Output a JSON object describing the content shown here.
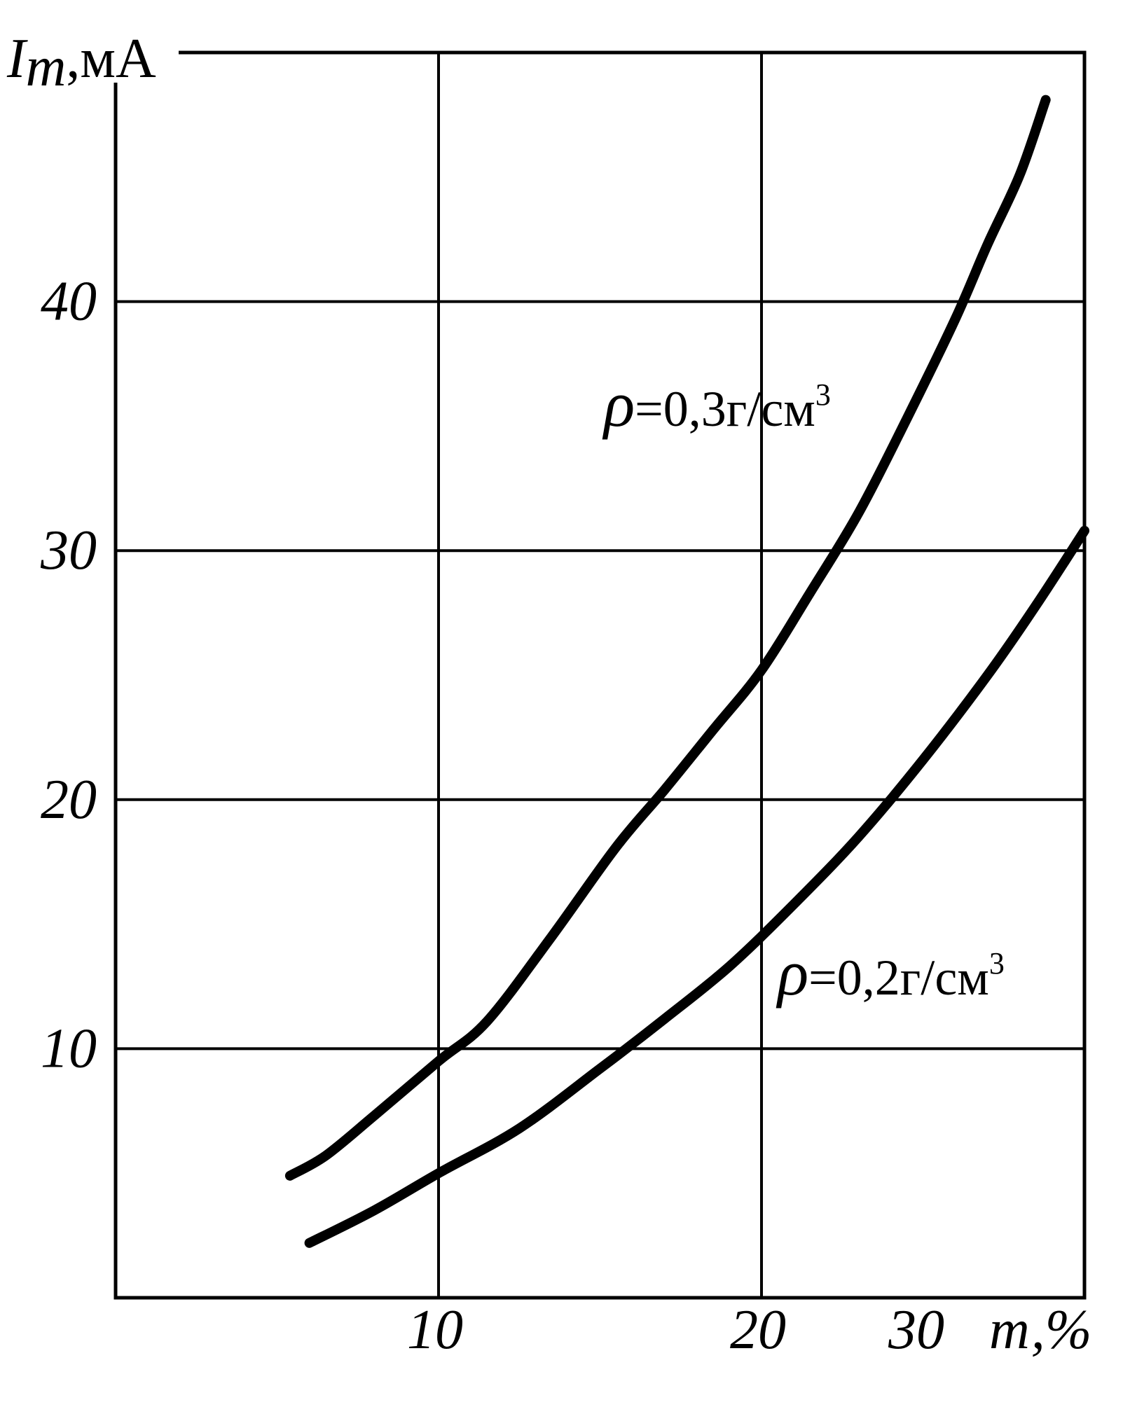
{
  "chart_data": {
    "type": "line",
    "title": "",
    "ylabel": {
      "symbol": "I",
      "subscript": "m",
      "unit": ",мА"
    },
    "xlabel": "т,%",
    "xlim": [
      0,
      30
    ],
    "ylim": [
      0,
      50
    ],
    "x_ticks": [
      {
        "value": 10,
        "label": "10"
      },
      {
        "value": 20,
        "label": "20"
      },
      {
        "value": 30,
        "label": "30"
      }
    ],
    "y_ticks": [
      {
        "value": 10,
        "label": "10"
      },
      {
        "value": 20,
        "label": "20"
      },
      {
        "value": 30,
        "label": "30"
      },
      {
        "value": 40,
        "label": "40"
      }
    ],
    "grid": true,
    "series": [
      {
        "name": "ρ=0,3г/см³",
        "label_parts": {
          "rho": "ρ",
          "eq": "=0,3г/см",
          "sup": "3"
        },
        "x": [
          5.4,
          6.5,
          8.0,
          10.0,
          11.5,
          13.5,
          15.5,
          17.0,
          18.5,
          20.0,
          21.5,
          23.0,
          24.5,
          26.0,
          27.0,
          28.0,
          28.8
        ],
        "y": [
          4.9,
          5.7,
          7.3,
          9.5,
          11.1,
          14.5,
          18.1,
          20.4,
          22.8,
          25.2,
          28.3,
          31.5,
          35.3,
          39.3,
          42.3,
          45.1,
          48.1
        ]
      },
      {
        "name": "ρ=0,2г/см³",
        "label_parts": {
          "rho": "ρ",
          "eq": "=0,2г/см",
          "sup": "3"
        },
        "x": [
          6.0,
          8.0,
          10.0,
          12.5,
          15.0,
          17.0,
          19.0,
          21.0,
          23.0,
          25.0,
          27.0,
          28.5,
          30.0
        ],
        "y": [
          2.2,
          3.5,
          5.0,
          6.8,
          9.2,
          11.2,
          13.3,
          15.8,
          18.5,
          21.6,
          25.0,
          27.8,
          30.8
        ]
      }
    ]
  }
}
